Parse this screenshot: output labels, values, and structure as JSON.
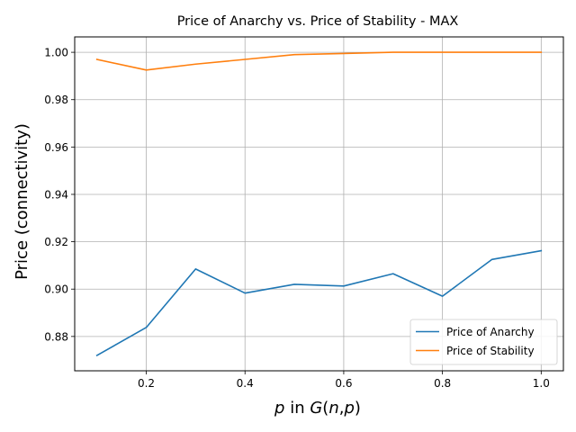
{
  "chart_data": {
    "type": "line",
    "title": "Price of Anarchy vs. Price of Stability - MAX",
    "xlabel": "p in G(n,p)",
    "ylabel": "Price (connectivity)",
    "x": [
      0.1,
      0.2,
      0.3,
      0.4,
      0.5,
      0.6,
      0.7,
      0.8,
      0.9,
      1.0
    ],
    "series": [
      {
        "name": "Price of Anarchy",
        "color": "#1f77b4",
        "values": [
          0.872,
          0.8838,
          0.9085,
          0.8983,
          0.902,
          0.9013,
          0.9065,
          0.897,
          0.9125,
          0.9162
        ]
      },
      {
        "name": "Price of Stability",
        "color": "#ff7f0e",
        "values": [
          0.997,
          0.9925,
          0.995,
          0.997,
          0.999,
          0.9995,
          1.0,
          1.0,
          1.0,
          1.0
        ]
      }
    ],
    "xlim": [
      0.055,
      1.045
    ],
    "ylim": [
      0.8655,
      1.0065
    ],
    "xticks": [
      0.2,
      0.4,
      0.6,
      0.8,
      1.0
    ],
    "xtick_labels": [
      "0.2",
      "0.4",
      "0.6",
      "0.8",
      "1.0"
    ],
    "yticks": [
      0.88,
      0.9,
      0.92,
      0.94,
      0.96,
      0.98,
      1.0
    ],
    "ytick_labels": [
      "0.88",
      "0.90",
      "0.92",
      "0.94",
      "0.96",
      "0.98",
      "1.00"
    ],
    "grid": true,
    "legend_position": "lower-right"
  }
}
